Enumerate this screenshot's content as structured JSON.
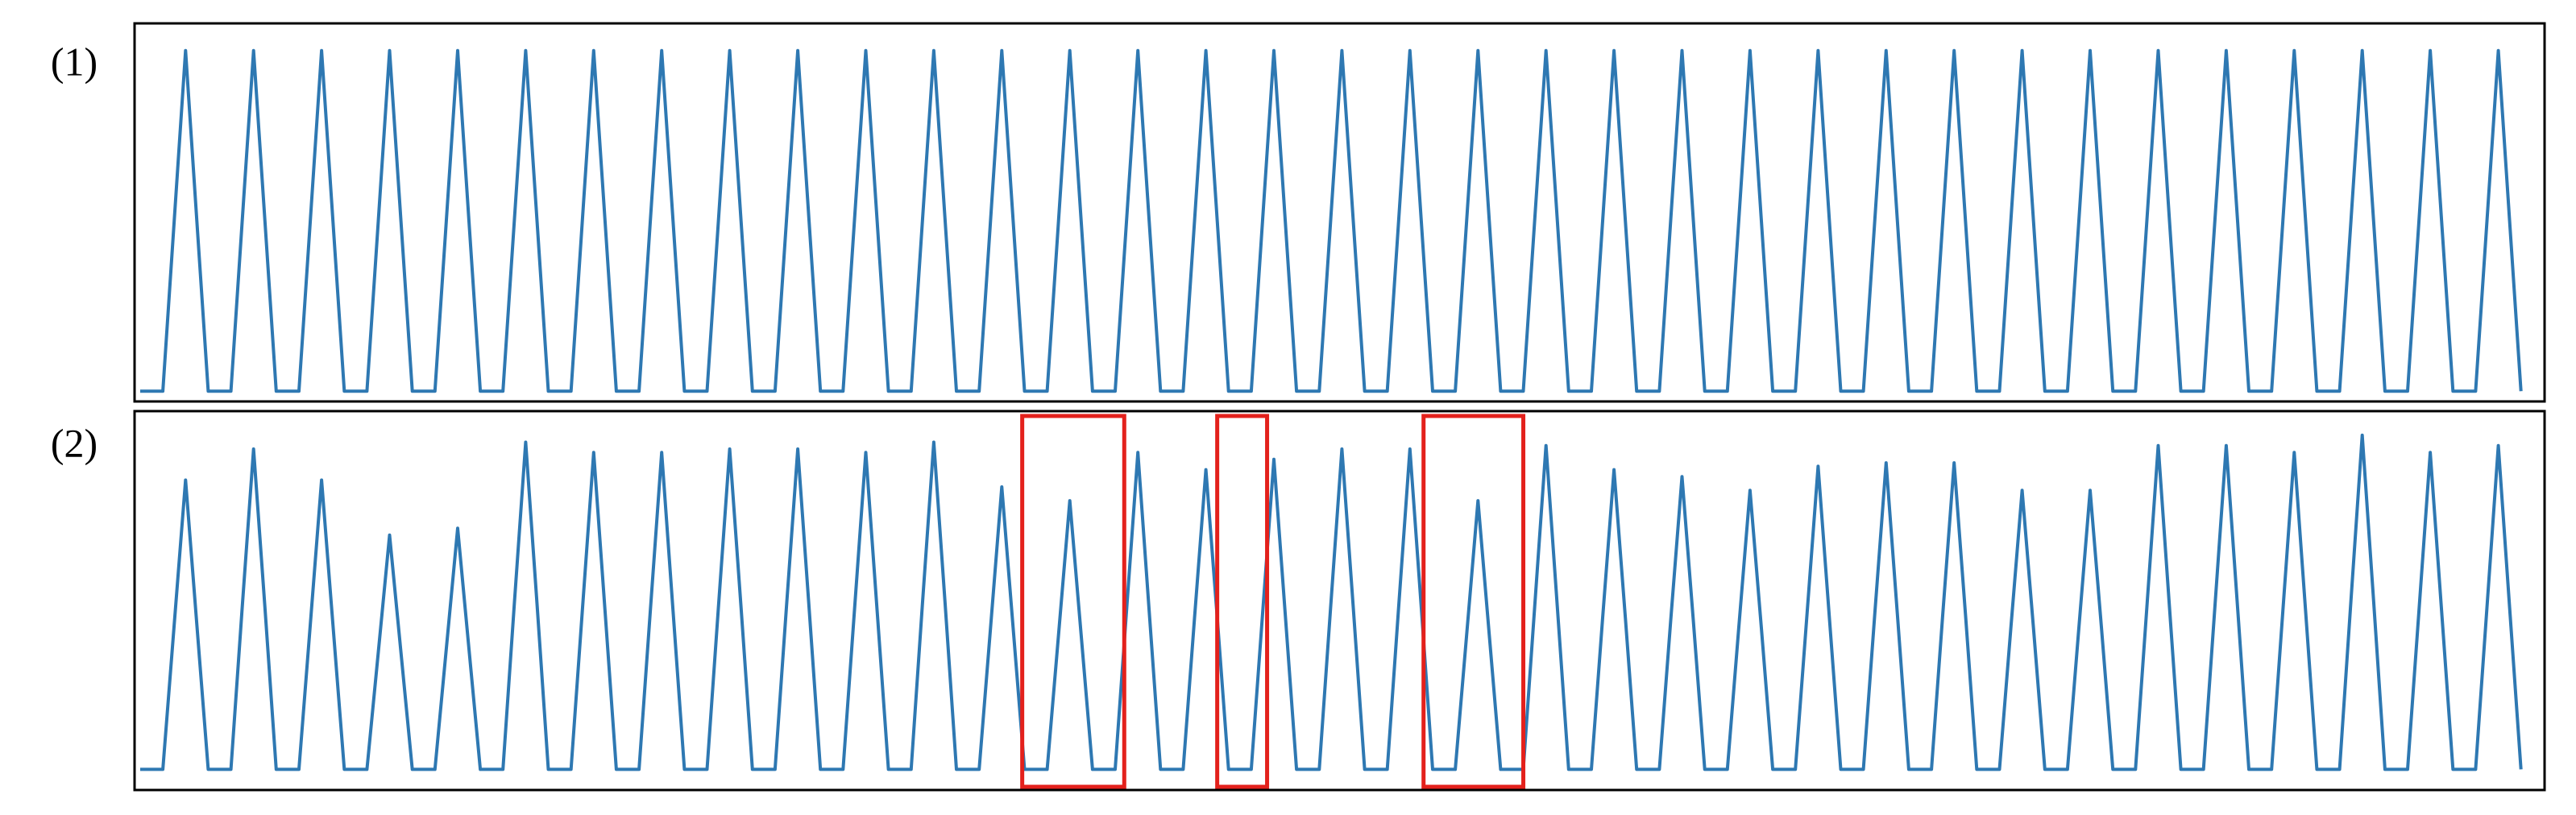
{
  "chart_data": [
    {
      "type": "line",
      "title": "(1)",
      "color": "#2e78b2",
      "ylim": [
        -0.03,
        1.08
      ],
      "values": [
        0,
        0,
        0,
        0.5,
        1,
        0.5,
        0,
        0,
        0,
        0.5,
        1,
        0.5,
        0,
        0,
        0,
        0.5,
        1,
        0.5,
        0,
        0,
        0,
        0.5,
        1,
        0.5,
        0,
        0,
        0,
        0.5,
        1,
        0.5,
        0,
        0,
        0,
        0.5,
        1,
        0.5,
        0,
        0,
        0,
        0.5,
        1,
        0.5,
        0,
        0,
        0,
        0.5,
        1,
        0.5,
        0,
        0,
        0,
        0.5,
        1,
        0.5,
        0,
        0,
        0,
        0.5,
        1,
        0.5,
        0,
        0,
        0,
        0.5,
        1,
        0.5,
        0,
        0,
        0,
        0.5,
        1,
        0.5,
        0,
        0,
        0,
        0.5,
        1,
        0.5,
        0,
        0,
        0,
        0.5,
        1,
        0.5,
        0,
        0,
        0,
        0.5,
        1,
        0.5,
        0,
        0,
        0,
        0.5,
        1,
        0.5,
        0,
        0,
        0,
        0.5,
        1,
        0.5,
        0,
        0,
        0,
        0.5,
        1,
        0.5,
        0,
        0,
        0,
        0.5,
        1,
        0.5,
        0,
        0,
        0,
        0.5,
        1,
        0.5,
        0,
        0,
        0,
        0.5,
        1,
        0.5,
        0,
        0,
        0,
        0.5,
        1,
        0.5,
        0,
        0,
        0,
        0.5,
        1,
        0.5,
        0,
        0,
        0,
        0.5,
        1,
        0.5,
        0,
        0,
        0,
        0.5,
        1,
        0.5,
        0,
        0,
        0,
        0.5,
        1,
        0.5,
        0,
        0,
        0,
        0.5,
        1,
        0.5,
        0,
        0,
        0,
        0.5,
        1,
        0.5,
        0,
        0,
        0,
        0.5,
        1,
        0.5,
        0,
        0,
        0,
        0.5,
        1,
        0.5,
        0,
        0,
        0,
        0.5,
        1,
        0.5,
        0,
        0,
        0,
        0.5,
        1,
        0.5,
        0,
        0,
        0,
        0.5,
        1,
        0.5,
        0,
        0,
        0,
        0.5,
        1,
        0.5,
        0,
        0,
        0,
        0.5,
        1,
        0.5,
        0
      ]
    },
    {
      "type": "line",
      "title": "(2)",
      "color": "#2e78b2",
      "ylim": [
        -0.06,
        1.04
      ],
      "highlight_color": "#e3211c",
      "highlights": [
        {
          "x0": 77.8,
          "x1": 86.8
        },
        {
          "x0": 95.0,
          "x1": 99.4
        },
        {
          "x0": 113.2,
          "x1": 122.0
        }
      ],
      "values": [
        0,
        0,
        0,
        0.42,
        0.84,
        0.42,
        0,
        0,
        0,
        0.47,
        0.93,
        0.47,
        0,
        0,
        0,
        0.42,
        0.84,
        0.42,
        0,
        0,
        0,
        0.34,
        0.68,
        0.34,
        0,
        0,
        0,
        0.35,
        0.7,
        0.35,
        0,
        0,
        0,
        0.48,
        0.95,
        0.48,
        0,
        0,
        0,
        0.46,
        0.92,
        0.46,
        0,
        0,
        0,
        0.46,
        0.92,
        0.46,
        0,
        0,
        0,
        0.47,
        0.93,
        0.47,
        0,
        0,
        0,
        0.47,
        0.93,
        0.47,
        0,
        0,
        0,
        0.46,
        0.92,
        0.46,
        0,
        0,
        0,
        0.48,
        0.95,
        0.48,
        0,
        0,
        0,
        0.41,
        0.82,
        0.41,
        0,
        0,
        0,
        0.39,
        0.78,
        0.39,
        0,
        0,
        0,
        0.46,
        0.92,
        0.46,
        0,
        0,
        0,
        0.44,
        0.87,
        0.44,
        0,
        0,
        0,
        0.45,
        0.9,
        0.45,
        0,
        0,
        0,
        0.47,
        0.93,
        0.47,
        0,
        0,
        0,
        0.47,
        0.93,
        0.47,
        0,
        0,
        0,
        0.39,
        0.78,
        0.39,
        0,
        0,
        0,
        0.47,
        0.94,
        0.47,
        0,
        0,
        0,
        0.44,
        0.87,
        0.44,
        0,
        0,
        0,
        0.43,
        0.85,
        0.43,
        0,
        0,
        0,
        0.41,
        0.81,
        0.41,
        0,
        0,
        0,
        0.44,
        0.88,
        0.44,
        0,
        0,
        0,
        0.45,
        0.89,
        0.45,
        0,
        0,
        0,
        0.45,
        0.89,
        0.45,
        0,
        0,
        0,
        0.41,
        0.81,
        0.41,
        0,
        0,
        0,
        0.41,
        0.81,
        0.41,
        0,
        0,
        0,
        0.47,
        0.94,
        0.47,
        0,
        0,
        0,
        0.47,
        0.94,
        0.47,
        0,
        0,
        0,
        0.46,
        0.92,
        0.46,
        0,
        0,
        0,
        0.49,
        0.97,
        0.49,
        0,
        0,
        0,
        0.46,
        0.92,
        0.46,
        0,
        0,
        0,
        0.47,
        0.94,
        0.47,
        0
      ]
    }
  ]
}
